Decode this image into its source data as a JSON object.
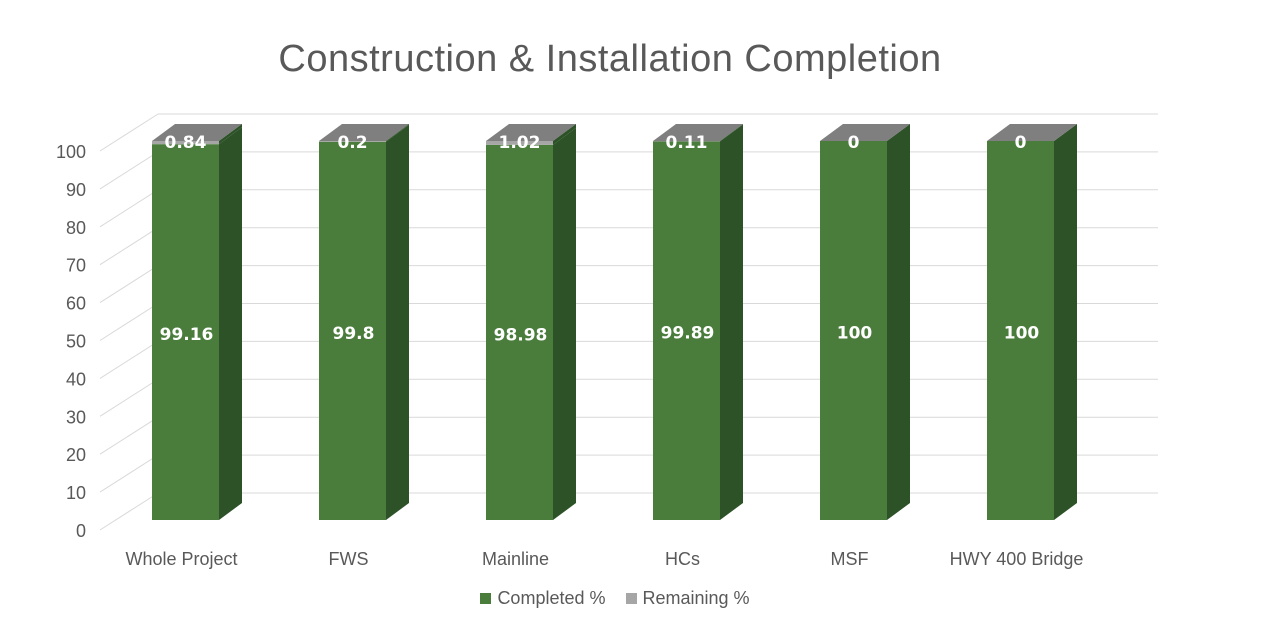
{
  "chart_data": {
    "type": "bar",
    "stacked": true,
    "style": "3d",
    "title": "Construction & Installation Completion",
    "categories": [
      "Whole Project",
      "FWS",
      "Mainline",
      "HCs",
      "MSF",
      "HWY 400 Bridge"
    ],
    "series": [
      {
        "name": "Completed %",
        "values": [
          99.16,
          99.8,
          98.98,
          99.89,
          100,
          100
        ],
        "color": "#4a7d3b"
      },
      {
        "name": "Remaining %",
        "values": [
          0.84,
          0.2,
          1.02,
          0.11,
          0,
          0
        ],
        "color": "#a6a6a6"
      }
    ],
    "y_ticks": [
      "0",
      "10",
      "20",
      "30",
      "40",
      "50",
      "60",
      "70",
      "80",
      "90",
      "100"
    ],
    "ylim": [
      0,
      100
    ],
    "grid": true,
    "legend_position": "bottom"
  }
}
